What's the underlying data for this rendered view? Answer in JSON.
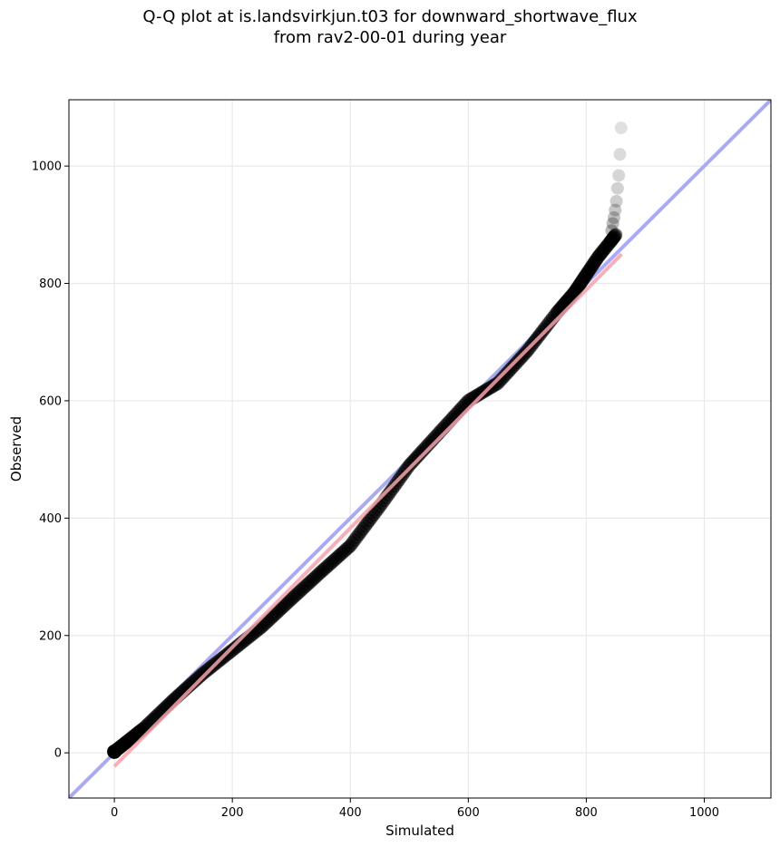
{
  "chart_data": {
    "type": "scatter",
    "title_line1": "Q-Q plot at is.landsvirkjun.t03 for downward_shortwave_flux",
    "title_line2": "from rav2-00-01 during year",
    "xlabel": "Simulated",
    "ylabel": "Observed",
    "xlim": [
      -77,
      1113
    ],
    "ylim": [
      -77,
      1113
    ],
    "xticks": [
      0,
      200,
      400,
      600,
      800,
      1000
    ],
    "yticks": [
      0,
      200,
      400,
      600,
      800,
      1000
    ],
    "grid": true,
    "colors": {
      "identity_line": "#aaaaf2",
      "fit_line": "#f5a3aa",
      "points": "#000000"
    },
    "fit_line": {
      "x": [
        0,
        860
      ],
      "y": [
        -23,
        850
      ]
    },
    "quantile_curve": {
      "x": [
        0,
        20,
        50,
        100,
        150,
        200,
        250,
        300,
        350,
        400,
        450,
        500,
        550,
        600,
        650,
        700,
        750,
        780,
        800,
        820,
        840,
        850
      ],
      "y": [
        2,
        18,
        42,
        90,
        135,
        175,
        215,
        262,
        308,
        353,
        420,
        490,
        545,
        600,
        630,
        685,
        750,
        785,
        815,
        845,
        870,
        883
      ]
    },
    "tail_points": {
      "x": [
        843,
        845,
        847,
        849,
        851,
        853,
        855,
        857,
        859
      ],
      "y": [
        890,
        902,
        912,
        925,
        940,
        962,
        984,
        1020,
        1065
      ]
    }
  }
}
